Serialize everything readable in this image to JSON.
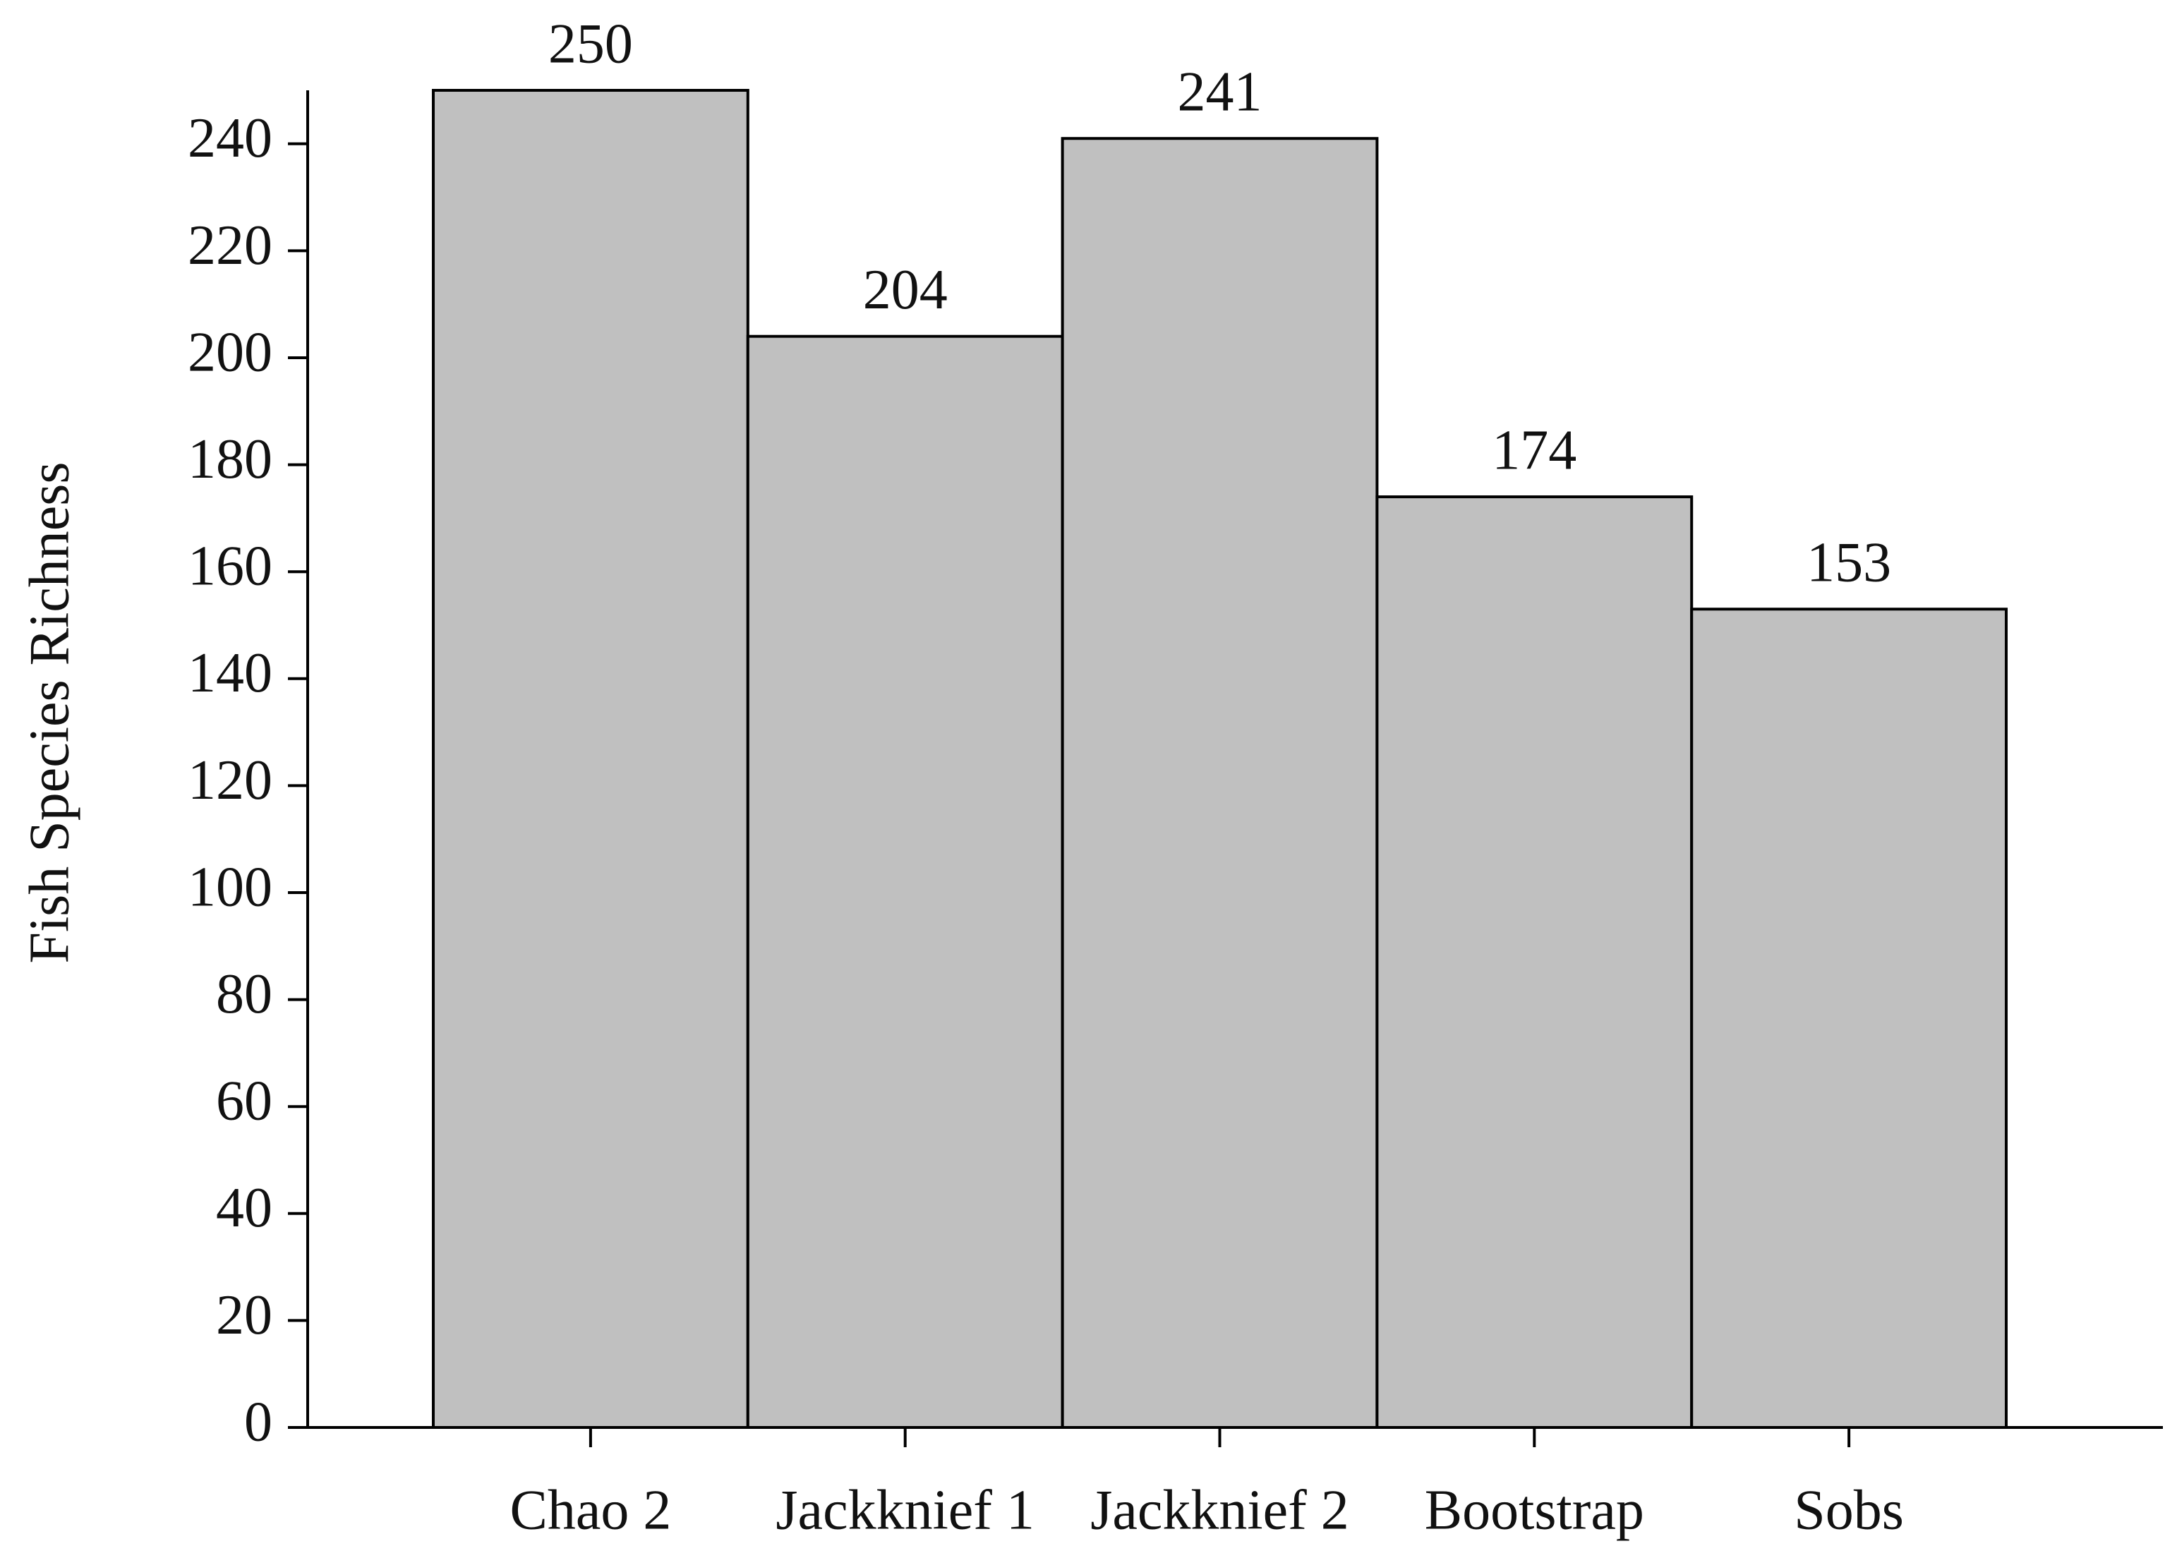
{
  "chart_data": {
    "type": "bar",
    "y_label": "Fish Species Richness",
    "categories": [
      "Chao 2",
      "Jackknief 1",
      "Jackknief 2",
      "Bootstrap",
      "Sobs"
    ],
    "values": [
      250,
      204,
      241,
      174,
      153
    ],
    "color": "#c0c0c0",
    "ylim": [
      0,
      250
    ],
    "yticks": [
      0,
      20,
      40,
      60,
      80,
      100,
      120,
      140,
      160,
      180,
      200,
      220,
      240
    ],
    "grid": false
  }
}
